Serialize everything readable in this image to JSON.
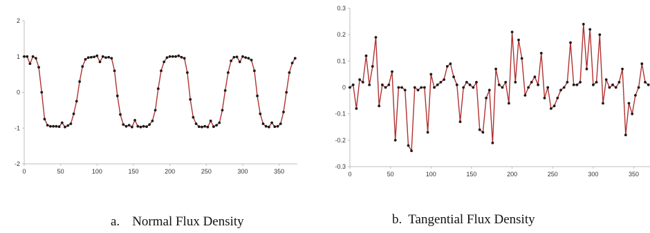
{
  "captions": {
    "a": {
      "letter": "a.",
      "text": "Normal Flux Density"
    },
    "b": {
      "letter": "b.",
      "text": "Tangential Flux Density"
    }
  },
  "colors": {
    "line": "#b03030",
    "marker": "#1a1a1a",
    "axis": "#bdbdbd"
  },
  "chart_data": [
    {
      "type": "line",
      "title": "",
      "xlabel": "",
      "ylabel": "",
      "xlim": [
        0,
        375
      ],
      "ylim": [
        -2,
        2
      ],
      "x_ticks": [
        0,
        50,
        100,
        150,
        200,
        250,
        300,
        350
      ],
      "y_ticks": [
        2,
        1,
        0,
        -1,
        -2
      ],
      "grid": false,
      "series": [
        {
          "x": [
            0,
            4,
            8,
            12,
            16,
            20,
            24,
            28,
            32,
            36,
            40,
            44,
            48,
            52,
            56,
            60,
            64,
            68,
            72,
            76,
            80,
            84,
            88,
            92,
            96,
            100,
            104,
            108,
            112,
            116,
            120,
            124,
            128,
            132,
            136,
            140,
            144,
            148,
            152,
            156,
            160,
            164,
            168,
            172,
            176,
            180,
            184,
            188,
            192,
            196,
            200,
            204,
            208,
            212,
            216,
            220,
            224,
            228,
            232,
            236,
            240,
            244,
            248,
            252,
            256,
            260,
            264,
            268,
            272,
            276,
            280,
            284,
            288,
            292,
            296,
            300,
            304,
            308,
            312,
            316,
            320,
            324,
            328,
            332,
            336,
            340,
            344,
            348,
            352,
            356,
            360,
            364,
            368,
            372
          ],
          "y": [
            1.0,
            1.0,
            0.8,
            1.0,
            0.95,
            0.7,
            0.0,
            -0.75,
            -0.92,
            -0.95,
            -0.95,
            -0.95,
            -0.96,
            -0.85,
            -0.97,
            -0.93,
            -0.88,
            -0.6,
            -0.25,
            0.3,
            0.72,
            0.92,
            0.97,
            0.98,
            0.99,
            1.02,
            0.85,
            1.0,
            0.97,
            0.98,
            0.95,
            0.6,
            -0.1,
            -0.62,
            -0.9,
            -0.95,
            -0.92,
            -0.97,
            -0.78,
            -0.95,
            -0.97,
            -0.95,
            -0.96,
            -0.9,
            -0.8,
            -0.5,
            0.1,
            0.6,
            0.85,
            0.97,
            1.0,
            1.0,
            1.0,
            1.02,
            0.98,
            0.95,
            0.55,
            -0.2,
            -0.7,
            -0.88,
            -0.96,
            -0.97,
            -0.95,
            -0.97,
            -0.8,
            -0.96,
            -0.92,
            -0.85,
            -0.5,
            0.05,
            0.55,
            0.88,
            0.98,
            0.99,
            0.85,
            1.0,
            0.97,
            0.95,
            0.9,
            0.6,
            -0.1,
            -0.6,
            -0.88,
            -0.95,
            -0.97,
            -0.85,
            -0.96,
            -0.95,
            -0.88,
            -0.55,
            0.0,
            0.55,
            0.82,
            0.95
          ]
        }
      ]
    },
    {
      "type": "line",
      "title": "",
      "xlabel": "",
      "ylabel": "",
      "xlim": [
        0,
        370
      ],
      "ylim": [
        -0.3,
        0.3
      ],
      "x_ticks": [
        0,
        50,
        100,
        150,
        200,
        250,
        300,
        350
      ],
      "y_ticks": [
        0.3,
        0.2,
        0.1,
        0,
        -0.1,
        -0.2,
        -0.3
      ],
      "grid": false,
      "series": [
        {
          "x": [
            0,
            4,
            8,
            12,
            16,
            20,
            24,
            28,
            32,
            36,
            40,
            44,
            48,
            52,
            56,
            60,
            64,
            68,
            72,
            76,
            80,
            84,
            88,
            92,
            96,
            100,
            104,
            108,
            112,
            116,
            120,
            124,
            128,
            132,
            136,
            140,
            144,
            148,
            152,
            156,
            160,
            164,
            168,
            172,
            176,
            180,
            184,
            188,
            192,
            196,
            200,
            204,
            208,
            212,
            216,
            220,
            224,
            228,
            232,
            236,
            240,
            244,
            248,
            252,
            256,
            260,
            264,
            268,
            272,
            276,
            280,
            284,
            288,
            292,
            296,
            300,
            304,
            308,
            312,
            316,
            320,
            324,
            328,
            332,
            336,
            340,
            344,
            348,
            352,
            356,
            360,
            364,
            368
          ],
          "y": [
            0.0,
            0.01,
            -0.08,
            0.03,
            0.02,
            0.12,
            0.01,
            0.08,
            0.19,
            -0.07,
            0.01,
            0.0,
            0.01,
            0.06,
            -0.2,
            0.0,
            0.0,
            -0.01,
            -0.22,
            -0.24,
            0.0,
            -0.01,
            0.0,
            0.0,
            -0.17,
            0.05,
            0.0,
            0.01,
            0.02,
            0.03,
            0.08,
            0.09,
            0.04,
            0.01,
            -0.13,
            0.0,
            0.02,
            0.01,
            0.0,
            0.02,
            -0.16,
            -0.17,
            -0.04,
            -0.01,
            -0.21,
            0.07,
            0.01,
            0.0,
            0.02,
            -0.06,
            0.21,
            0.02,
            0.18,
            0.11,
            -0.03,
            0.0,
            0.02,
            0.04,
            0.01,
            0.13,
            -0.04,
            0.0,
            -0.08,
            -0.07,
            -0.04,
            -0.01,
            0.0,
            0.02,
            0.17,
            0.01,
            0.01,
            0.02,
            0.24,
            0.07,
            0.22,
            0.01,
            0.02,
            0.2,
            -0.06,
            0.03,
            0.0,
            0.01,
            0.0,
            0.02,
            0.07,
            -0.18,
            -0.06,
            -0.1,
            -0.03,
            0.0,
            0.09,
            0.02,
            0.01
          ]
        }
      ]
    }
  ]
}
